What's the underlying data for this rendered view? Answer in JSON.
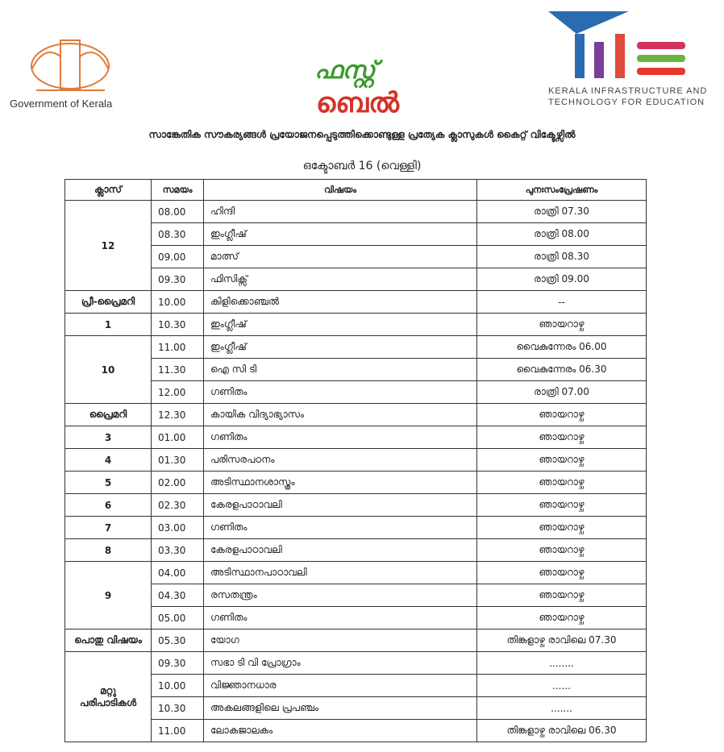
{
  "header": {
    "government": "Government of Kerala",
    "logo_text_top": "ഫസ്റ്റ്",
    "logo_text_bottom": "ബെൽ",
    "kite_line1": "Kerala Infrastructure and",
    "kite_line2": "Technology for Education",
    "title": "സാങ്കേതിക സൗകര്യങ്ങൾ പ്രയോജനപ്പെടുത്തിക്കൊണ്ടുള്ള പ്രത്യേക ക്ലാസുകൾ കൈറ്റ് വിക്ടേഴ്സിൽ",
    "date": "ഒക്ടോബർ 16 (വെള്ളി)"
  },
  "table": {
    "columns": [
      "ക്ലാസ്",
      "സമയം",
      "വിഷയം",
      "പുനഃസംപ്രേഷണം"
    ],
    "groups": [
      {
        "class": "12",
        "rows": [
          [
            "08.00",
            "ഹിന്ദി",
            "രാത്രി 07.30"
          ],
          [
            "08.30",
            "ഇംഗ്ലീഷ്",
            "രാത്രി 08.00"
          ],
          [
            "09.00",
            "മാത്സ്",
            "രാത്രി 08.30"
          ],
          [
            "09.30",
            "ഫിസിക്സ്",
            "രാത്രി 09.00"
          ]
        ]
      },
      {
        "class": "പ്രീ-പ്രൈമറി",
        "rows": [
          [
            "10.00",
            "കിളിക്കൊഞ്ചൽ",
            "--"
          ]
        ]
      },
      {
        "class": "1",
        "rows": [
          [
            "10.30",
            "ഇംഗ്ലീഷ്",
            "ഞായറാഴ്ച"
          ]
        ]
      },
      {
        "class": "10",
        "rows": [
          [
            "11.00",
            "ഇംഗ്ലീഷ്",
            "വൈകുന്നേരം 06.00"
          ],
          [
            "11.30",
            "ഐ സി ടി",
            "വൈകുന്നേരം 06.30"
          ],
          [
            "12.00",
            "ഗണിതം",
            "രാത്രി 07.00"
          ]
        ]
      },
      {
        "class": "പ്രൈമറി",
        "rows": [
          [
            "12.30",
            "കായിക വിദ്യാഭ്യാസം",
            "ഞായറാഴ്ച"
          ]
        ]
      },
      {
        "class": "3",
        "rows": [
          [
            "01.00",
            "ഗണിതം",
            "ഞായറാഴ്ച"
          ]
        ]
      },
      {
        "class": "4",
        "rows": [
          [
            "01.30",
            "പരിസരപഠനം",
            "ഞായറാഴ്ച"
          ]
        ]
      },
      {
        "class": "5",
        "rows": [
          [
            "02.00",
            "അടിസ്ഥാനശാസ്ത്രം",
            "ഞായറാഴ്ച"
          ]
        ]
      },
      {
        "class": "6",
        "rows": [
          [
            "02.30",
            "കേരളപാഠാവലി",
            "ഞായറാഴ്ച"
          ]
        ]
      },
      {
        "class": "7",
        "rows": [
          [
            "03.00",
            "ഗണിതം",
            "ഞായറാഴ്ച"
          ]
        ]
      },
      {
        "class": "8",
        "rows": [
          [
            "03.30",
            "കേരളപാഠാവലി",
            "ഞായറാഴ്ച"
          ]
        ]
      },
      {
        "class": "9",
        "rows": [
          [
            "04.00",
            "അടിസ്ഥാനപാഠാവലി",
            "ഞായറാഴ്ച"
          ],
          [
            "04.30",
            "രസതന്ത്രം",
            "ഞായറാഴ്ച"
          ],
          [
            "05.00",
            "ഗണിതം",
            "ഞായറാഴ്ച"
          ]
        ]
      },
      {
        "class": "പൊതു വിഷയം",
        "rows": [
          [
            "05.30",
            "യോഗ",
            "തിങ്കളാഴ്ച രാവിലെ 07.30"
          ]
        ]
      },
      {
        "class": "മറ്റു പരിപാടികൾ",
        "rows": [
          [
            "09.30",
            "സഭാ ടി വി പ്രോഗ്രാം",
            "........"
          ],
          [
            "10.00",
            "വിജ്ഞാനധാര",
            "......"
          ],
          [
            "10.30",
            "അകലങ്ങളിലെ പ്രപഞ്ചം",
            "......."
          ],
          [
            "11.00",
            "ലോകജാലകം",
            "തിങ്കളാഴ്ച രാവിലെ 06.30"
          ]
        ]
      }
    ]
  }
}
